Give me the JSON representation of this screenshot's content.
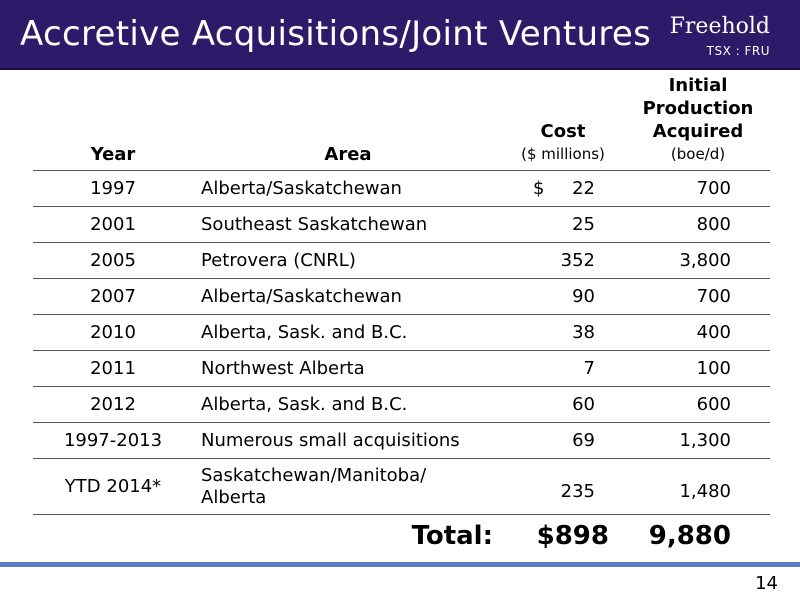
{
  "header": {
    "title": "Accretive Acquisitions/Joint Ventures",
    "logo_name": "Freehold",
    "logo_ticker": "TSX : FRU"
  },
  "table": {
    "columns": {
      "year": "Year",
      "area": "Area",
      "cost": "Cost",
      "cost_unit": "($ millions)",
      "prod_line1": "Initial",
      "prod_line2": "Production",
      "prod_line3": "Acquired",
      "prod_unit": "(boe/d)"
    },
    "currency_symbol": "$",
    "rows": [
      {
        "year": "1997",
        "area": "Alberta/Saskatchewan",
        "cost": "22",
        "production": "700"
      },
      {
        "year": "2001",
        "area": "Southeast Saskatchewan",
        "cost": "25",
        "production": "800"
      },
      {
        "year": "2005",
        "area": "Petrovera (CNRL)",
        "cost": "352",
        "production": "3,800"
      },
      {
        "year": "2007",
        "area": "Alberta/Saskatchewan",
        "cost": "90",
        "production": "700"
      },
      {
        "year": "2010",
        "area": "Alberta, Sask. and B.C.",
        "cost": "38",
        "production": "400"
      },
      {
        "year": "2011",
        "area": "Northwest Alberta",
        "cost": "7",
        "production": "100"
      },
      {
        "year": "2012",
        "area": "Alberta, Sask. and B.C.",
        "cost": "60",
        "production": "600"
      },
      {
        "year": "1997-2013",
        "area": "Numerous small acquisitions",
        "cost": "69",
        "production": "1,300"
      },
      {
        "year": "YTD 2014*",
        "area_line1": "Saskatchewan/Manitoba/",
        "area_line2": "Alberta",
        "cost": "235",
        "production": "1,480"
      }
    ],
    "total": {
      "label": "Total:",
      "cost": "$898",
      "production": "9,880"
    }
  },
  "footer": {
    "page_number": "14"
  },
  "colors": {
    "header_bg": "#2d1b69",
    "footer_line": "#5b7fc0"
  }
}
